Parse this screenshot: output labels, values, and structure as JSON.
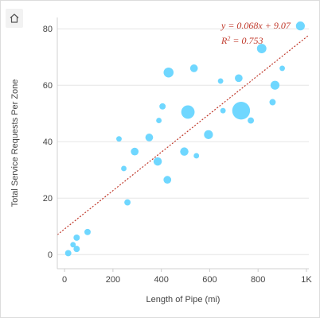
{
  "toolbar": {
    "home_icon": "home-icon"
  },
  "chart_data": {
    "type": "scatter",
    "title": "",
    "xlabel": "Length of Pipe (mi)",
    "ylabel": "Total Service Requests Per Zone",
    "xlim": [
      -30,
      1010
    ],
    "ylim": [
      -5,
      84
    ],
    "x_ticks": [
      0,
      200,
      400,
      600,
      800,
      1000
    ],
    "x_tick_labels": [
      "0",
      "200",
      "400",
      "600",
      "800",
      "1K"
    ],
    "y_ticks": [
      0,
      20,
      40,
      60,
      80
    ],
    "y_tick_labels": [
      "0",
      "20",
      "40",
      "60",
      "80"
    ],
    "grid": "horizontal",
    "point_color": "#5fd3ff",
    "points": [
      {
        "x": 15,
        "y": 0.5,
        "size": 2
      },
      {
        "x": 35,
        "y": 3.5,
        "size": 1.5
      },
      {
        "x": 50,
        "y": 2,
        "size": 2
      },
      {
        "x": 50,
        "y": 6,
        "size": 2
      },
      {
        "x": 95,
        "y": 8,
        "size": 2
      },
      {
        "x": 225,
        "y": 41,
        "size": 1.5
      },
      {
        "x": 245,
        "y": 30.5,
        "size": 1.5
      },
      {
        "x": 260,
        "y": 18.5,
        "size": 2
      },
      {
        "x": 290,
        "y": 36.5,
        "size": 3
      },
      {
        "x": 350,
        "y": 41.5,
        "size": 3
      },
      {
        "x": 385,
        "y": 33,
        "size": 3.5
      },
      {
        "x": 390,
        "y": 47.5,
        "size": 1.5
      },
      {
        "x": 405,
        "y": 52.5,
        "size": 2
      },
      {
        "x": 425,
        "y": 26.5,
        "size": 3
      },
      {
        "x": 430,
        "y": 64.5,
        "size": 5
      },
      {
        "x": 495,
        "y": 36.5,
        "size": 3.5
      },
      {
        "x": 510,
        "y": 50.5,
        "size": 9
      },
      {
        "x": 535,
        "y": 66,
        "size": 3
      },
      {
        "x": 545,
        "y": 35,
        "size": 1.5
      },
      {
        "x": 595,
        "y": 42.5,
        "size": 4
      },
      {
        "x": 645,
        "y": 61.5,
        "size": 1.5
      },
      {
        "x": 655,
        "y": 51,
        "size": 1.5
      },
      {
        "x": 720,
        "y": 62.5,
        "size": 3
      },
      {
        "x": 730,
        "y": 51,
        "size": 16
      },
      {
        "x": 770,
        "y": 47.5,
        "size": 2
      },
      {
        "x": 815,
        "y": 73,
        "size": 4.5
      },
      {
        "x": 860,
        "y": 54,
        "size": 2
      },
      {
        "x": 870,
        "y": 60,
        "size": 4
      },
      {
        "x": 900,
        "y": 66,
        "size": 1.5
      },
      {
        "x": 975,
        "y": 81,
        "size": 4
      }
    ],
    "trendline": {
      "slope": 0.068,
      "intercept": 9.07,
      "color": "#c0392b",
      "equation": "y = 0.068x + 9.07",
      "r2_label": "R",
      "r2_sup": "2",
      "r2_value": " = 0.753"
    }
  }
}
